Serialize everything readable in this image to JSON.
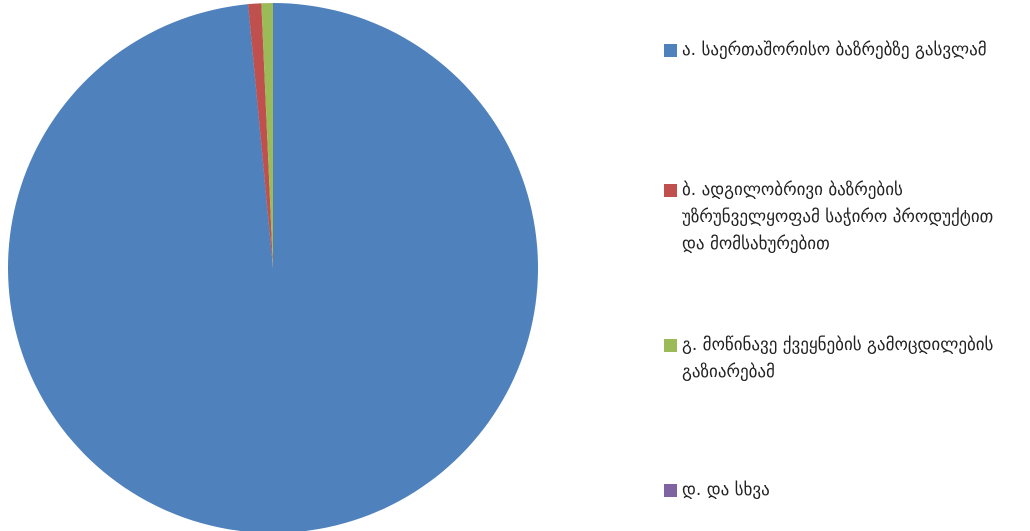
{
  "chart_data": {
    "type": "pie",
    "categories": [
      "ა. საერთაშორისო ბაზრებზე გასვლამ",
      "ბ. ადგილობრივი ბაზრების უზრუნველყოფამ საჭირო პროდუქტით და მომსახურებით",
      "გ. მოწინავე ქვეყნების გამოცდილების გაზიარებამ",
      "დ. და სხვა"
    ],
    "values": [
      98.5,
      0.8,
      0.7,
      0
    ],
    "colors": [
      "#4f81bd",
      "#c0504d",
      "#9bbb59",
      "#8064a2"
    ],
    "legend": "right"
  }
}
